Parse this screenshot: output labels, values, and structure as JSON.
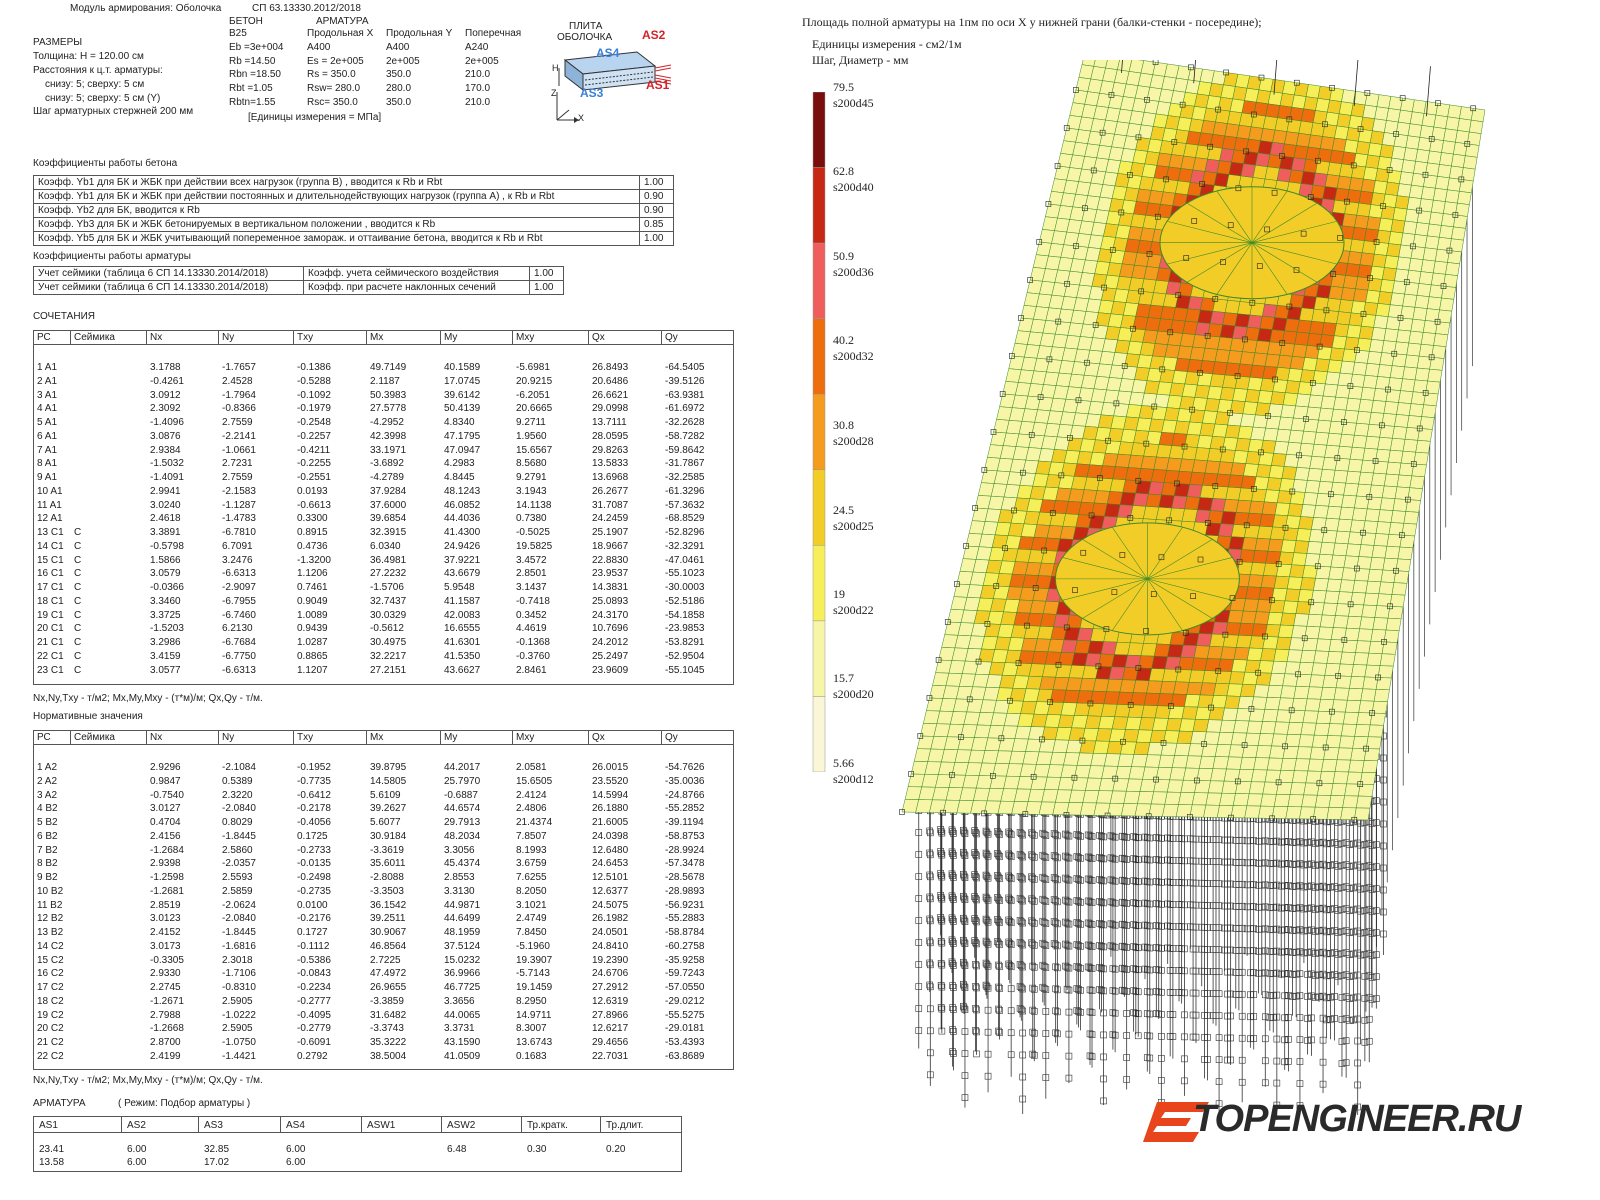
{
  "header": {
    "module": "Модуль армирования: Оболочка",
    "norm": "СП 63.13330.2012/2018"
  },
  "sizes": {
    "title": "РАЗМЕРЫ",
    "lines": [
      "Толщина: H = 120.00 см",
      "Расстояния к ц.т. арматуры:",
      "снизу: 5; сверху: 5 см",
      "снизу: 5; сверху: 5 см (Y)",
      "Шаг арматурных стержней 200 мм"
    ]
  },
  "materials": {
    "beton_title": "БЕТОН",
    "armatura_title": "АРМАТУРА",
    "col_beton": [
      "B25",
      "Eb  =3e+004",
      "Rb  =14.50",
      "Rbn =18.50",
      "Rbt =1.05",
      "Rbtn=1.55"
    ],
    "col_long_x": [
      "Продольная X",
      "A400",
      "Es = 2e+005",
      "Rs = 350.0",
      "Rsw= 280.0",
      "Rsc= 350.0"
    ],
    "col_long_y": [
      "Продольная Y",
      "A400",
      "2e+005",
      "350.0",
      "280.0",
      "350.0"
    ],
    "col_trans": [
      "Поперечная",
      "A240",
      "2e+005",
      "210.0",
      "170.0",
      "210.0"
    ],
    "units": "[Единицы измерения = МПа]"
  },
  "plate_diagram": {
    "title1": "ПЛИТА",
    "title2": "ОБОЛОЧКА",
    "as1": "AS1",
    "as2": "AS2",
    "as3": "AS3",
    "as4": "AS4",
    "h": "H",
    "z": "Z",
    "x": "X",
    "red": "#d2232a",
    "blue": "#3a7fd5"
  },
  "concrete_coef": {
    "title": "Коэффициенты работы бетона",
    "rows": [
      {
        "label": "Коэфф. Yb1 для БК и ЖБК при действии всех нагрузок (группа В) , вводится к Rb и Rbt",
        "value": "1.00"
      },
      {
        "label": "Коэфф. Yb1 для БК и ЖБК при действии постоянных и длительнодействующих нагрузок (группа А) ,  к Rb и Rbt",
        "value": "0.90"
      },
      {
        "label": "Коэфф. Yb2 для БК, вводится к Rb",
        "value": "0.90"
      },
      {
        "label": "Коэфф. Yb3 для БК и ЖБК бетонируемых в вертикальном положении , вводится к Rb",
        "value": "0.85"
      },
      {
        "label": "Коэфф. Yb5 для БК и ЖБК учитывающий попеременное замораж. и оттаивание бетона, вводится к Rb и Rbt",
        "value": "1.00"
      }
    ]
  },
  "rebar_coef": {
    "title": "Коэффициенты работы арматуры",
    "rows": [
      {
        "a": "Учет сеймики (таблица 6 СП 14.13330.2014/2018)",
        "b": "Коэфф. учета сеймического воздействия",
        "value": "1.00"
      },
      {
        "a": "Учет сеймики (таблица 6 СП 14.13330.2014/2018)",
        "b": "Коэфф. при расчете наклонных сечений",
        "value": "1.00"
      }
    ]
  },
  "combinations": {
    "title": "СОЧЕТАНИЯ",
    "headers": [
      "РС",
      "Сеймика",
      "Nx",
      "Ny",
      "Txy",
      "Mx",
      "My",
      "Mxy",
      "Qx",
      "Qy"
    ],
    "rows": [
      [
        "1 A1",
        "",
        "3.1788",
        "-1.7657",
        "-0.1386",
        "49.7149",
        "40.1589",
        "-5.6981",
        "26.8493",
        "-64.5405"
      ],
      [
        "2 A1",
        "",
        "-0.4261",
        "2.4528",
        "-0.5288",
        "2.1187",
        "17.0745",
        "20.9215",
        "20.6486",
        "-39.5126"
      ],
      [
        "3 A1",
        "",
        "3.0912",
        "-1.7964",
        "-0.1092",
        "50.3983",
        "39.6142",
        "-6.2051",
        "26.6621",
        "-63.9381"
      ],
      [
        "4 A1",
        "",
        "2.3092",
        "-0.8366",
        "-0.1979",
        "27.5778",
        "50.4139",
        "20.6665",
        "29.0998",
        "-61.6972"
      ],
      [
        "5 A1",
        "",
        "-1.4096",
        "2.7559",
        "-0.2548",
        "-4.2952",
        "4.8340",
        "9.2711",
        "13.7111",
        "-32.2628"
      ],
      [
        "6 A1",
        "",
        "3.0876",
        "-2.2141",
        "-0.2257",
        "42.3998",
        "47.1795",
        "1.9560",
        "28.0595",
        "-58.7282"
      ],
      [
        "7 A1",
        "",
        "2.9384",
        "-1.0661",
        "-0.4211",
        "33.1971",
        "47.0947",
        "15.6567",
        "29.8263",
        "-59.8642"
      ],
      [
        "8 A1",
        "",
        "-1.5032",
        "2.7231",
        "-0.2255",
        "-3.6892",
        "4.2983",
        "8.5680",
        "13.5833",
        "-31.7867"
      ],
      [
        "9 A1",
        "",
        "-1.4091",
        "2.7559",
        "-0.2551",
        "-4.2789",
        "4.8445",
        "9.2791",
        "13.6968",
        "-32.2585"
      ],
      [
        "10 A1",
        "",
        "2.9941",
        "-2.1583",
        "0.0193",
        "37.9284",
        "48.1243",
        "3.1943",
        "26.2677",
        "-61.3296"
      ],
      [
        "11 A1",
        "",
        "3.0240",
        "-1.1287",
        "-0.6613",
        "37.6000",
        "46.0852",
        "14.1138",
        "31.7087",
        "-57.3632"
      ],
      [
        "12 A1",
        "",
        "2.4618",
        "-1.4783",
        "0.3300",
        "39.6854",
        "44.4036",
        "0.7380",
        "24.2459",
        "-68.8529"
      ],
      [
        "13 C1",
        "C",
        "3.3891",
        "-6.7810",
        "0.8915",
        "32.3915",
        "41.4300",
        "-0.5025",
        "25.1907",
        "-52.8296"
      ],
      [
        "14 C1",
        "C",
        "-0.5798",
        "6.7091",
        "0.4736",
        "6.0340",
        "24.9426",
        "19.5825",
        "18.9667",
        "-32.3291"
      ],
      [
        "15 C1",
        "C",
        "1.5866",
        "3.2476",
        "-1.3200",
        "36.4981",
        "37.9221",
        "3.4572",
        "22.8830",
        "-47.0461"
      ],
      [
        "16 C1",
        "C",
        "3.0579",
        "-6.6313",
        "1.1206",
        "27.2232",
        "43.6679",
        "2.8501",
        "23.9537",
        "-55.1023"
      ],
      [
        "17 C1",
        "C",
        "-0.0366",
        "-2.9097",
        "0.7461",
        "-1.5706",
        "5.9548",
        "3.1437",
        "14.3831",
        "-30.0003"
      ],
      [
        "18 C1",
        "C",
        "3.3460",
        "-6.7955",
        "0.9049",
        "32.7437",
        "41.1587",
        "-0.7418",
        "25.0893",
        "-52.5186"
      ],
      [
        "19 C1",
        "C",
        "3.3725",
        "-6.7460",
        "1.0089",
        "30.0329",
        "42.0083",
        "0.3452",
        "24.3170",
        "-54.1858"
      ],
      [
        "20 C1",
        "C",
        "-1.5203",
        "6.2130",
        "0.9439",
        "-0.5612",
        "16.6555",
        "4.4619",
        "10.7696",
        "-23.9853"
      ],
      [
        "21 C1",
        "C",
        "3.2986",
        "-6.7684",
        "1.0287",
        "30.4975",
        "41.6301",
        "-0.1368",
        "24.2012",
        "-53.8291"
      ],
      [
        "22 C1",
        "C",
        "3.4159",
        "-6.7750",
        "0.8865",
        "32.2217",
        "41.5350",
        "-0.3760",
        "25.2497",
        "-52.9504"
      ],
      [
        "23 C1",
        "C",
        "3.0577",
        "-6.6313",
        "1.1207",
        "27.2151",
        "43.6627",
        "2.8461",
        "23.9609",
        "-55.1045"
      ]
    ],
    "units": "Nx,Ny,Txy - т/м2; Mx,My,Mxy - (т*м)/м; Qx,Qy - т/м."
  },
  "normative": {
    "title": "Нормативные значения",
    "headers": [
      "РС",
      "Сеймика",
      "Nx",
      "Ny",
      "Txy",
      "Mx",
      "My",
      "Mxy",
      "Qx",
      "Qy"
    ],
    "rows": [
      [
        "1 A2",
        "",
        "2.9296",
        "-2.1084",
        "-0.1952",
        "39.8795",
        "44.2017",
        "2.0581",
        "26.0015",
        "-54.7626"
      ],
      [
        "2 A2",
        "",
        "0.9847",
        "0.5389",
        "-0.7735",
        "14.5805",
        "25.7970",
        "15.6505",
        "23.5520",
        "-35.0036"
      ],
      [
        "3 A2",
        "",
        "-0.7540",
        "2.3220",
        "-0.6412",
        "5.6109",
        "-0.6887",
        "2.4124",
        "14.5994",
        "-24.8766"
      ],
      [
        "4 B2",
        "",
        "3.0127",
        "-2.0840",
        "-0.2178",
        "39.2627",
        "44.6574",
        "2.4806",
        "26.1880",
        "-55.2852"
      ],
      [
        "5 B2",
        "",
        "0.4704",
        "0.8029",
        "-0.4056",
        "5.6077",
        "29.7913",
        "21.4374",
        "21.6005",
        "-39.1194"
      ],
      [
        "6 B2",
        "",
        "2.4156",
        "-1.8445",
        "0.1725",
        "30.9184",
        "48.2034",
        "7.8507",
        "24.0398",
        "-58.8753"
      ],
      [
        "7 B2",
        "",
        "-1.2684",
        "2.5860",
        "-0.2733",
        "-3.3619",
        "3.3056",
        "8.1993",
        "12.6480",
        "-28.9924"
      ],
      [
        "8 B2",
        "",
        "2.9398",
        "-2.0357",
        "-0.0135",
        "35.6011",
        "45.4374",
        "3.6759",
        "24.6453",
        "-57.3478"
      ],
      [
        "9 B2",
        "",
        "-1.2598",
        "2.5593",
        "-0.2498",
        "-2.8088",
        "2.8553",
        "7.6255",
        "12.5101",
        "-28.5678"
      ],
      [
        "10 B2",
        "",
        "-1.2681",
        "2.5859",
        "-0.2735",
        "-3.3503",
        "3.3130",
        "8.2050",
        "12.6377",
        "-28.9893"
      ],
      [
        "11 B2",
        "",
        "2.8519",
        "-2.0624",
        "0.0100",
        "36.1542",
        "44.9871",
        "3.1021",
        "24.5075",
        "-56.9231"
      ],
      [
        "12 B2",
        "",
        "3.0123",
        "-2.0840",
        "-0.2176",
        "39.2511",
        "44.6499",
        "2.4749",
        "26.1982",
        "-55.2883"
      ],
      [
        "13 B2",
        "",
        "2.4152",
        "-1.8445",
        "0.1727",
        "30.9067",
        "48.1959",
        "7.8450",
        "24.0501",
        "-58.8784"
      ],
      [
        "14 C2",
        "",
        "3.0173",
        "-1.6816",
        "-0.1112",
        "46.8564",
        "37.5124",
        "-5.1960",
        "24.8410",
        "-60.2758"
      ],
      [
        "15 C2",
        "",
        "-0.3305",
        "2.3018",
        "-0.5386",
        "2.7225",
        "15.0232",
        "19.3907",
        "19.2390",
        "-35.9258"
      ],
      [
        "16 C2",
        "",
        "2.9330",
        "-1.7106",
        "-0.0843",
        "47.4972",
        "36.9966",
        "-5.7143",
        "24.6706",
        "-59.7243"
      ],
      [
        "17 C2",
        "",
        "2.2745",
        "-0.8310",
        "-0.2234",
        "26.9655",
        "46.7725",
        "19.1459",
        "27.2912",
        "-57.0550"
      ],
      [
        "18 C2",
        "",
        "-1.2671",
        "2.5905",
        "-0.2777",
        "-3.3859",
        "3.3656",
        "8.2950",
        "12.6319",
        "-29.0212"
      ],
      [
        "19 C2",
        "",
        "2.7988",
        "-1.0222",
        "-0.4095",
        "31.6482",
        "44.0065",
        "14.9711",
        "27.8966",
        "-55.5275"
      ],
      [
        "20 C2",
        "",
        "-1.2668",
        "2.5905",
        "-0.2779",
        "-3.3743",
        "3.3731",
        "8.3007",
        "12.6217",
        "-29.0181"
      ],
      [
        "21 C2",
        "",
        "2.8700",
        "-1.0750",
        "-0.6091",
        "35.3222",
        "43.1590",
        "13.6743",
        "29.4656",
        "-53.4393"
      ],
      [
        "22 C2",
        "",
        "2.4199",
        "-1.4421",
        "0.2792",
        "38.5004",
        "41.0509",
        "0.1683",
        "22.7031",
        "-63.8689"
      ]
    ],
    "units": "Nx,Ny,Txy - т/м2; Mx,My,Mxy - (т*м)/м; Qx,Qy - т/м."
  },
  "armatura": {
    "title": "АРМАТУРА",
    "mode": "( Режим: Подбор арматуры )",
    "headers": [
      "AS1",
      "AS2",
      "AS3",
      "AS4",
      "ASW1",
      "ASW2",
      "Тр.кратк.",
      "Тр.длит."
    ],
    "rows": [
      [
        "23.41",
        "6.00",
        "32.85",
        "6.00",
        "",
        "6.48",
        "0.30",
        "0.20"
      ],
      [
        "13.58",
        "6.00",
        "17.02",
        "6.00",
        "",
        "",
        "",
        ""
      ]
    ]
  },
  "plot": {
    "title": "Площадь полной арматуры на 1пм по оси X у нижней грани (балки-стенки - посередине);",
    "units": "Единицы измерения - см2/1м",
    "step": "Шаг, Диаметр - мм",
    "legend": [
      {
        "value": "79.5",
        "label": "s200d45",
        "color": "#7a0d0d"
      },
      {
        "value": "62.8",
        "label": "s200d40",
        "color": "#c62814"
      },
      {
        "value": "50.9",
        "label": "s200d36",
        "color": "#ef5d5d"
      },
      {
        "value": "40.2",
        "label": "s200d32",
        "color": "#ee6d0c"
      },
      {
        "value": "30.8",
        "label": "s200d28",
        "color": "#f59b1d"
      },
      {
        "value": "24.5",
        "label": "s200d25",
        "color": "#f3cd27"
      },
      {
        "value": "19",
        "label": "s200d22",
        "color": "#f6ef5a"
      },
      {
        "value": "15.7",
        "label": "s200d20",
        "color": "#f7f5a6"
      },
      {
        "value": "5.66",
        "label": "s200d12",
        "color": "#fbf6d6"
      }
    ]
  },
  "logo": {
    "text": "TOPENGINEER.RU",
    "color_main": "#e8451c",
    "color_text": "#2a2a2a"
  }
}
